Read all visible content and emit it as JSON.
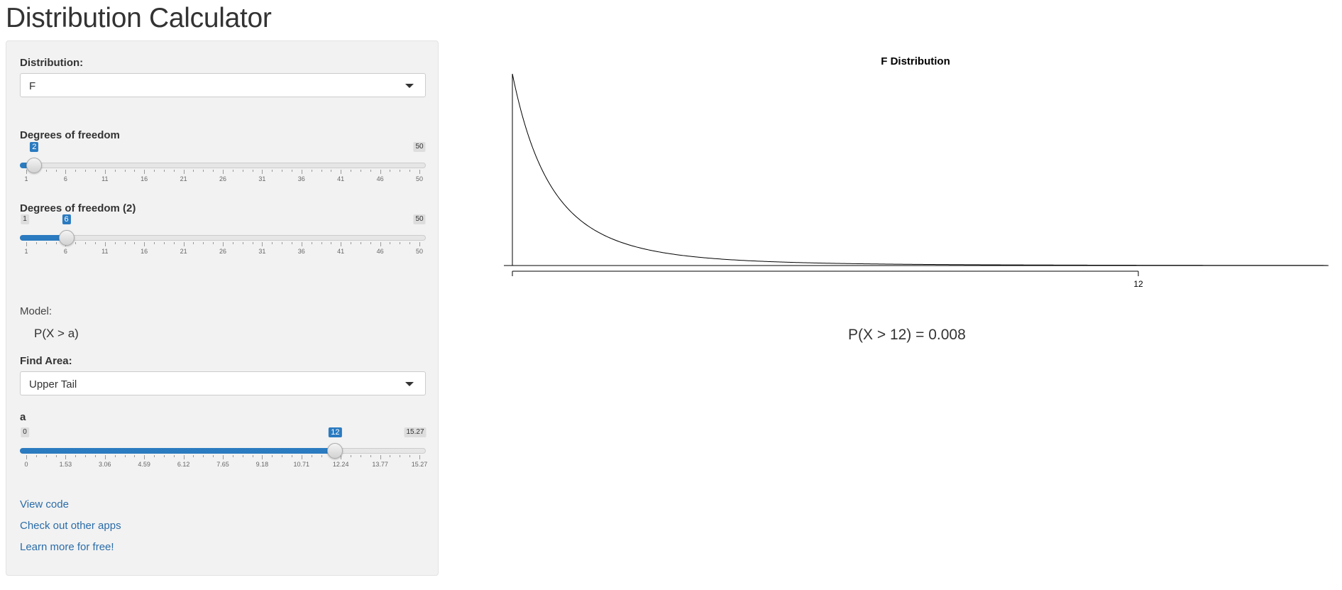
{
  "page": {
    "title": "Distribution Calculator"
  },
  "sidebar": {
    "distribution": {
      "label": "Distribution:",
      "value": "F"
    },
    "df1": {
      "label": "Degrees of freedom",
      "min": 1,
      "max": 50,
      "value": 2,
      "min_label": "",
      "max_label": "50",
      "value_label": "2",
      "ticks": [
        "1",
        "6",
        "11",
        "16",
        "21",
        "26",
        "31",
        "36",
        "41",
        "46",
        "50"
      ]
    },
    "df2": {
      "label": "Degrees of freedom (2)",
      "min": 1,
      "max": 50,
      "value": 6,
      "min_label": "1",
      "max_label": "50",
      "value_label": "6",
      "ticks": [
        "1",
        "6",
        "11",
        "16",
        "21",
        "26",
        "31",
        "36",
        "41",
        "46",
        "50"
      ]
    },
    "model": {
      "label": "Model:",
      "formula": "P(X > a)"
    },
    "find_area": {
      "label": "Find Area:",
      "value": "Upper Tail"
    },
    "a": {
      "label": "a",
      "min": 0,
      "max": 15.27,
      "value": 12,
      "min_label": "0",
      "max_label": "15.27",
      "value_label": "12",
      "ticks": [
        "0",
        "1.53",
        "3.06",
        "4.59",
        "6.12",
        "7.65",
        "9.18",
        "10.71",
        "12.24",
        "13.77",
        "15.27"
      ]
    },
    "links": {
      "view_code": "View code",
      "other_apps": "Check out other apps",
      "learn_more": "Learn more for free!"
    }
  },
  "colors": {
    "accent": "#2b7bc0",
    "link": "#2a6ca8"
  },
  "chart_data": {
    "type": "line",
    "title": "F Distribution",
    "df1": 2,
    "df2": 6,
    "xlim": [
      0,
      12.3
    ],
    "x_tick_labels": [
      "12"
    ],
    "shaded_from": 12,
    "series": [
      {
        "values_note": "",
        "x": [],
        "y": []
      }
    ]
  },
  "result": {
    "text": "P(X > 12) = 0.008"
  }
}
